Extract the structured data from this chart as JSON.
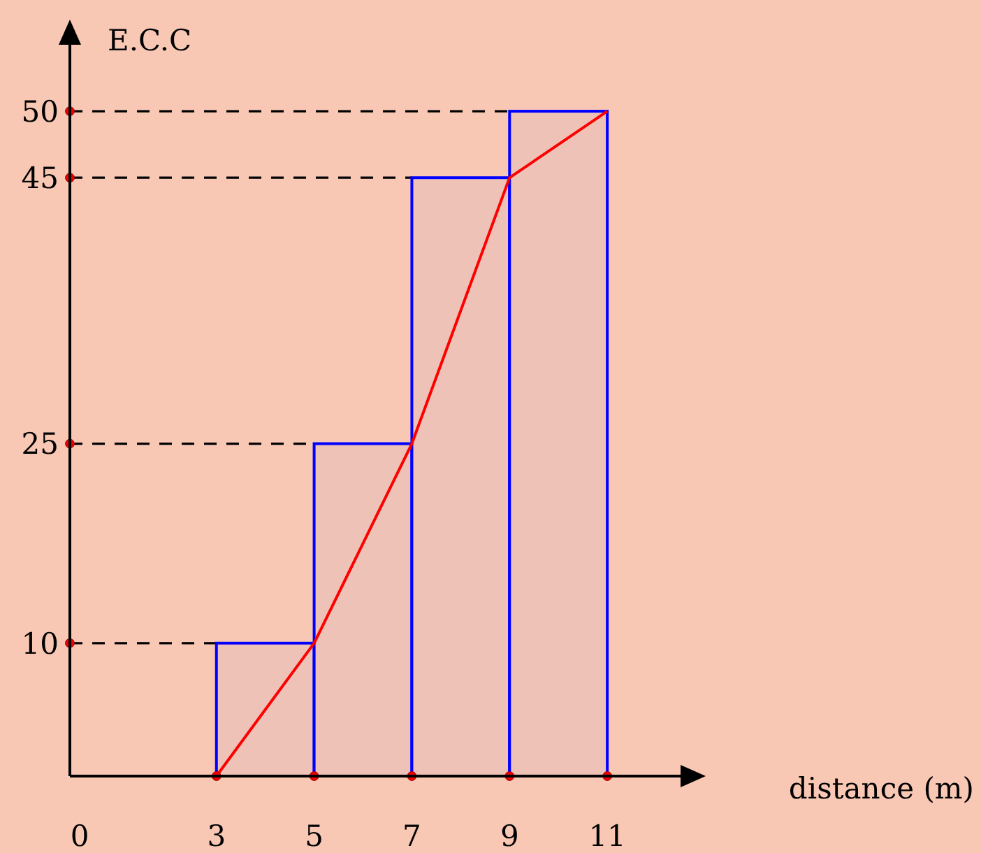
{
  "chart_data": {
    "type": "histogram",
    "xlabel": "distance (m)",
    "ylabel": "E.C.C",
    "bins": [
      3,
      5,
      7,
      9,
      11
    ],
    "series": [
      {
        "color": "#0000ff",
        "values": [
          10,
          25,
          45,
          50
        ]
      },
      {
        "type": "line",
        "color": "#ff0000",
        "x": [
          3,
          5,
          7,
          9,
          11
        ],
        "values": [
          0,
          10,
          25,
          45,
          50
        ]
      },
      {
        "type": "scatter",
        "color": "#ee0000",
        "marker": "circle",
        "x": [
          3,
          5,
          7,
          9,
          11
        ],
        "values": [
          0,
          0,
          0,
          0,
          0
        ]
      },
      {
        "type": "scatter",
        "color": "#ee0000",
        "marker": "circle",
        "x": [
          0,
          0,
          0,
          0
        ],
        "values": [
          10,
          25,
          45,
          50
        ]
      }
    ],
    "xlim": [
      0,
      12.5
    ],
    "ylim": [
      0,
      55
    ],
    "xticks": [
      0,
      3,
      5,
      7,
      9,
      11
    ],
    "yticks": [
      10,
      25,
      45,
      50
    ],
    "ref_lines": [
      {
        "axis": "y",
        "value": 10,
        "line_style": "dashed",
        "color": "#000000"
      },
      {
        "axis": "y",
        "value": 25,
        "line_style": "dashed",
        "color": "#000000"
      },
      {
        "axis": "y",
        "value": 45,
        "line_style": "dashed",
        "color": "#000000"
      },
      {
        "axis": "y",
        "value": 50,
        "line_style": "dashed",
        "color": "#000000"
      }
    ],
    "grid": false,
    "marker": "none"
  }
}
